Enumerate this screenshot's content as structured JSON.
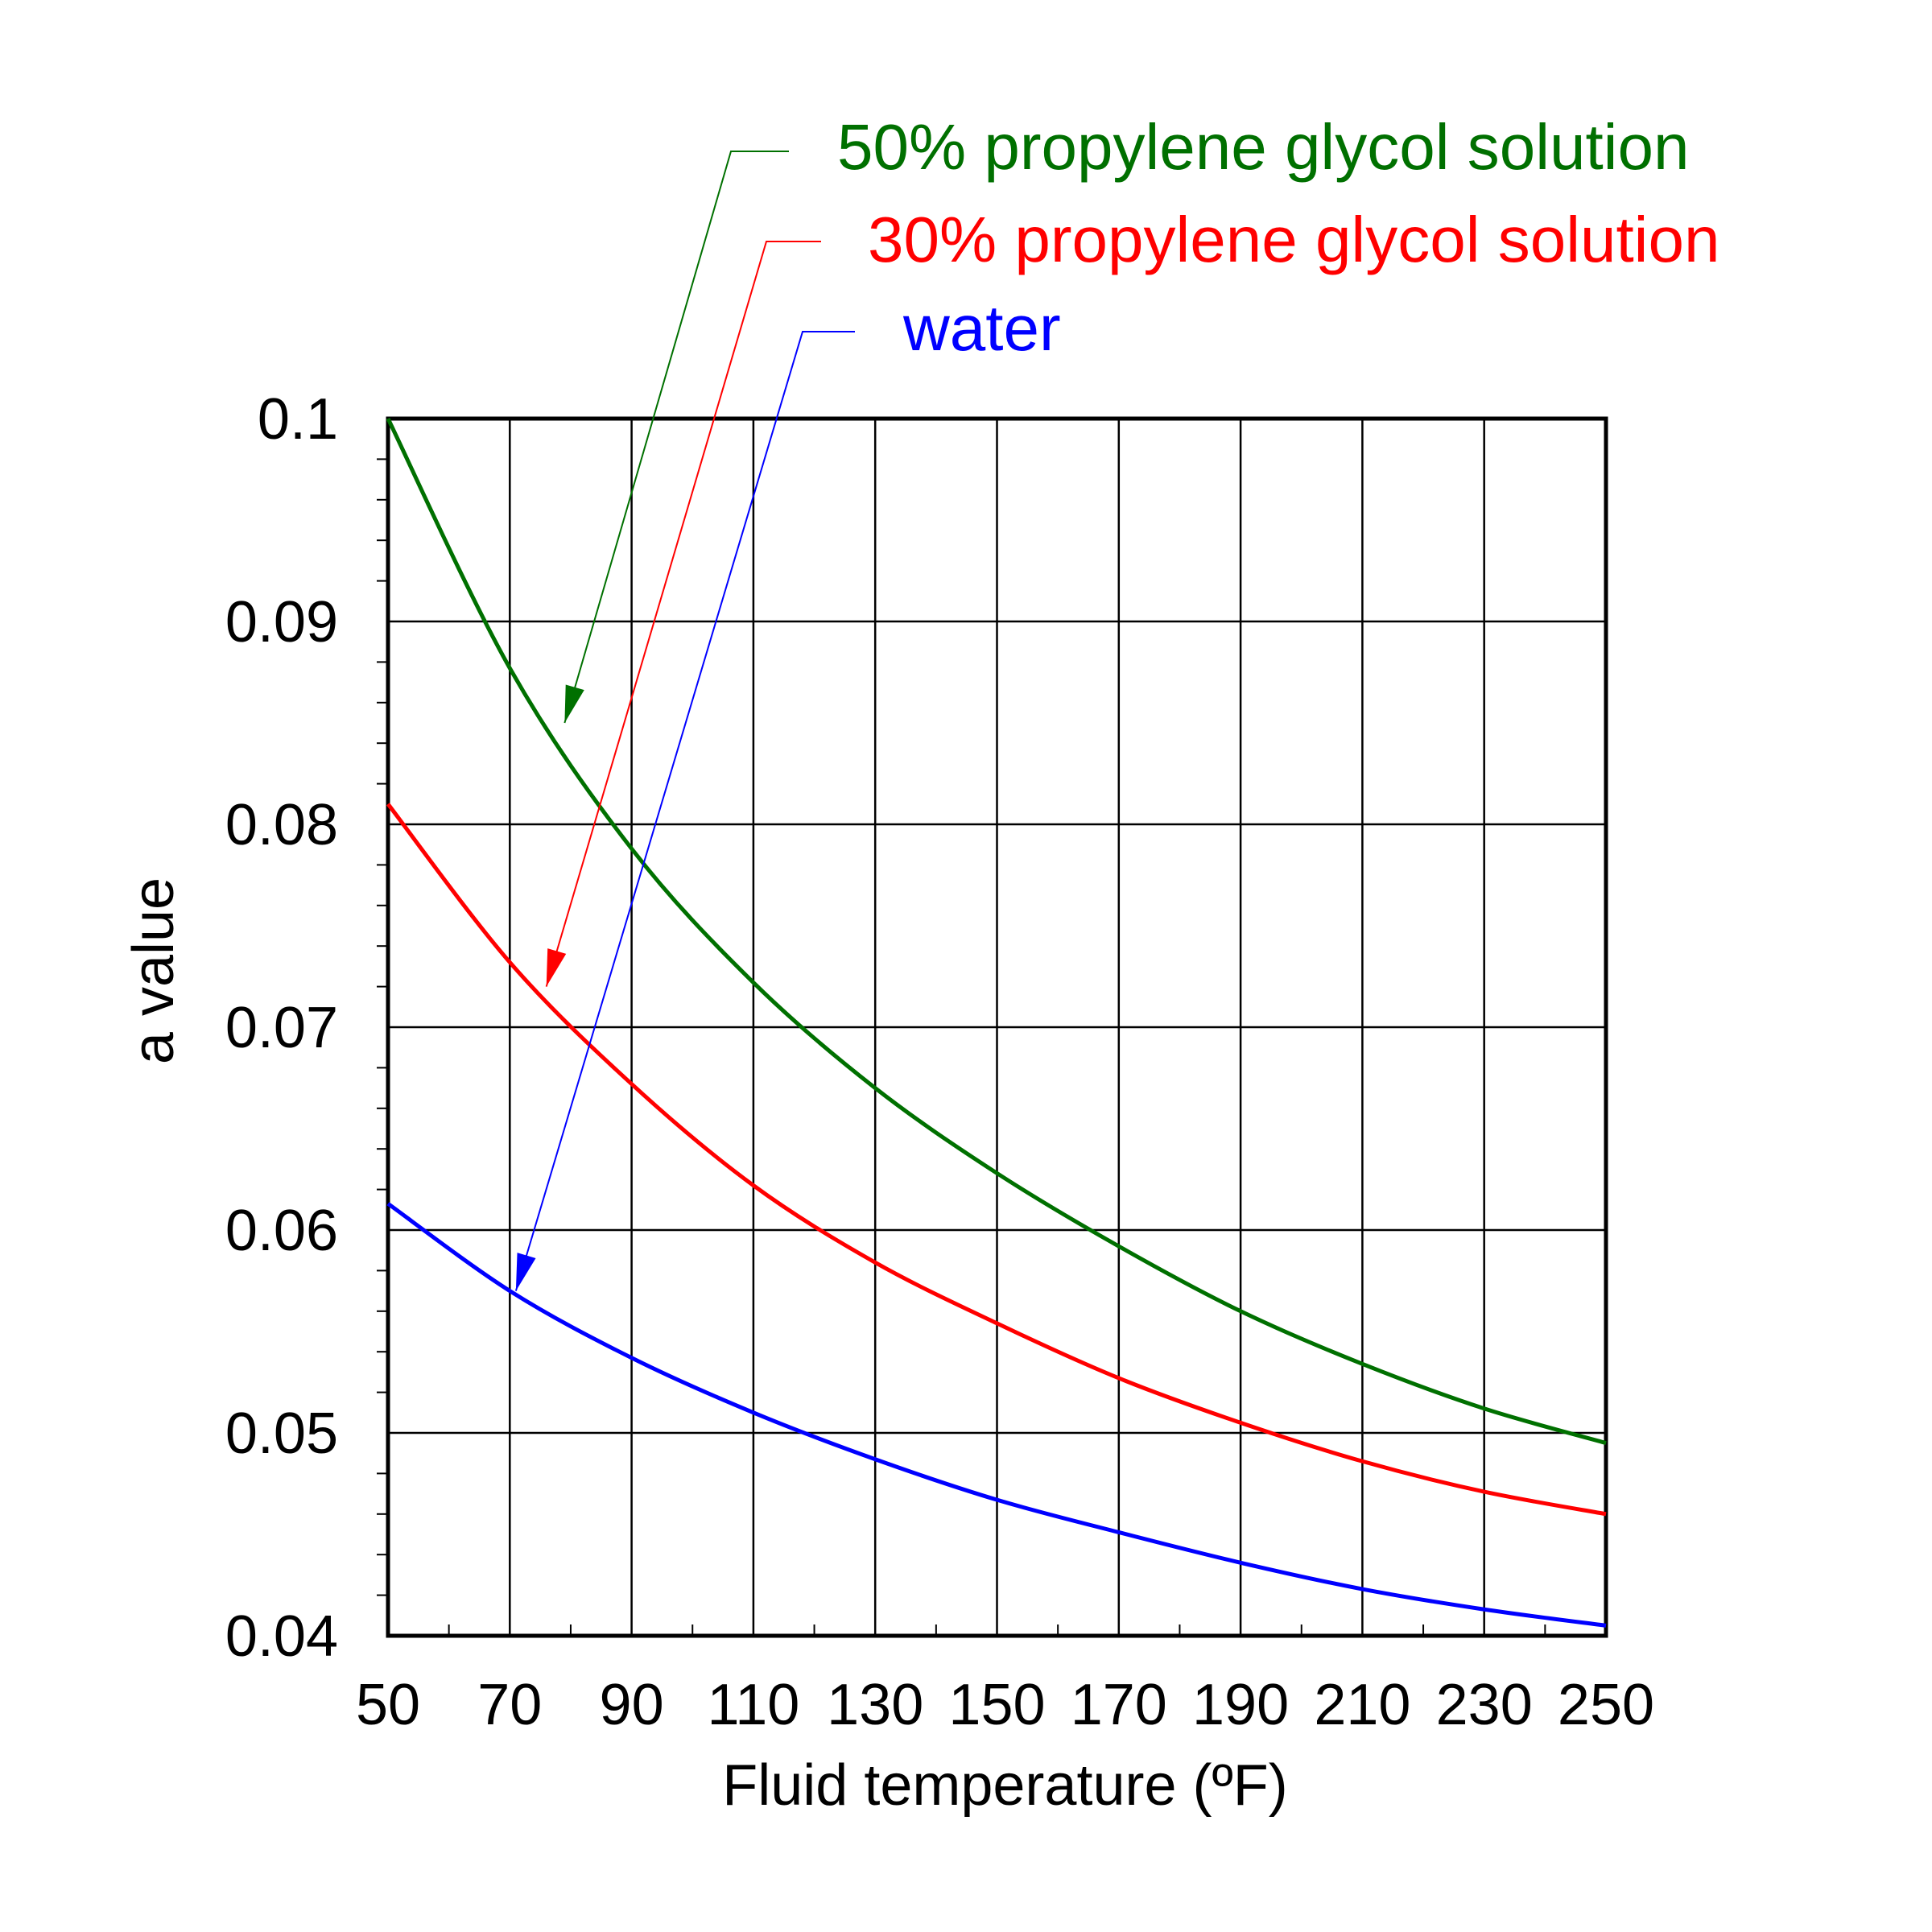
{
  "chart_data": {
    "type": "line",
    "xlabel": "Fluid temperature (ºF)",
    "ylabel": "a  value",
    "xlim": [
      50,
      250
    ],
    "ylim": [
      0.04,
      0.1
    ],
    "x_ticks": [
      50,
      70,
      90,
      110,
      130,
      150,
      170,
      190,
      210,
      230,
      250
    ],
    "x_tick_labels": [
      "50",
      "70",
      "90",
      "110",
      "130",
      "150",
      "170",
      "190",
      "210",
      "230",
      "250"
    ],
    "y_ticks": [
      0.04,
      0.05,
      0.06,
      0.07,
      0.08,
      0.09,
      0.1
    ],
    "y_tick_labels": [
      "0.04",
      "0.05",
      "0.06",
      "0.07",
      "0.08",
      "0.09",
      "0.1"
    ],
    "grid": true,
    "legend_placement": "top (annotation labels with arrows)",
    "series": [
      {
        "name": "50% propylene glycol solution",
        "color": "#007000",
        "x": [
          50,
          70,
          90,
          110,
          130,
          150,
          170,
          190,
          210,
          230,
          250
        ],
        "y": [
          0.1,
          0.0877,
          0.0788,
          0.0722,
          0.067,
          0.0628,
          0.0592,
          0.056,
          0.0534,
          0.0512,
          0.0495
        ]
      },
      {
        "name": "30% propylene glycol solution",
        "color": "#ff0000",
        "x": [
          50,
          70,
          90,
          110,
          130,
          150,
          170,
          190,
          210,
          230,
          250
        ],
        "y": [
          0.081,
          0.0732,
          0.0672,
          0.0622,
          0.0584,
          0.0554,
          0.0527,
          0.0505,
          0.0486,
          0.0471,
          0.046
        ]
      },
      {
        "name": "water",
        "color": "#0000ff",
        "x": [
          50,
          70,
          90,
          110,
          130,
          150,
          170,
          190,
          210,
          230,
          250
        ],
        "y": [
          0.0613,
          0.057,
          0.0537,
          0.051,
          0.0487,
          0.0467,
          0.0451,
          0.0436,
          0.0423,
          0.0413,
          0.0405
        ]
      }
    ],
    "annotations": [
      {
        "series": "50% propylene glycol solution",
        "arrow_target": {
          "x": 79,
          "y": 0.085
        }
      },
      {
        "series": "30% propylene glycol solution",
        "arrow_target": {
          "x": 76,
          "y": 0.072
        }
      },
      {
        "series": "water",
        "arrow_target": {
          "x": 71,
          "y": 0.057
        }
      }
    ]
  }
}
